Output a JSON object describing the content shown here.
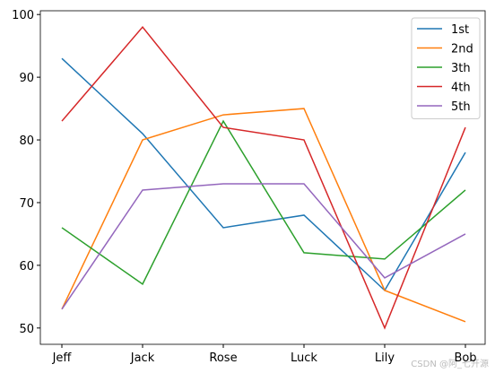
{
  "chart_data": {
    "type": "line",
    "categories": [
      "Jeff",
      "Jack",
      "Rose",
      "Luck",
      "Lily",
      "Bob"
    ],
    "series": [
      {
        "name": "1st",
        "color": "#1f77b4",
        "values": [
          93,
          81,
          66,
          68,
          56,
          78
        ]
      },
      {
        "name": "2nd",
        "color": "#ff7f0e",
        "values": [
          53,
          80,
          84,
          85,
          56,
          51
        ]
      },
      {
        "name": "3th",
        "color": "#2ca02c",
        "values": [
          66,
          57,
          83,
          62,
          61,
          72
        ]
      },
      {
        "name": "4th",
        "color": "#d62728",
        "values": [
          83,
          98,
          82,
          80,
          50,
          82
        ]
      },
      {
        "name": "5th",
        "color": "#9467bd",
        "values": [
          53,
          72,
          73,
          73,
          58,
          65
        ]
      }
    ],
    "ylim": [
      47.4,
      100.6
    ],
    "yticks": [
      50,
      60,
      70,
      80,
      90,
      100
    ],
    "legend": "upper right",
    "watermark": "CSDN @阿_七开源"
  }
}
